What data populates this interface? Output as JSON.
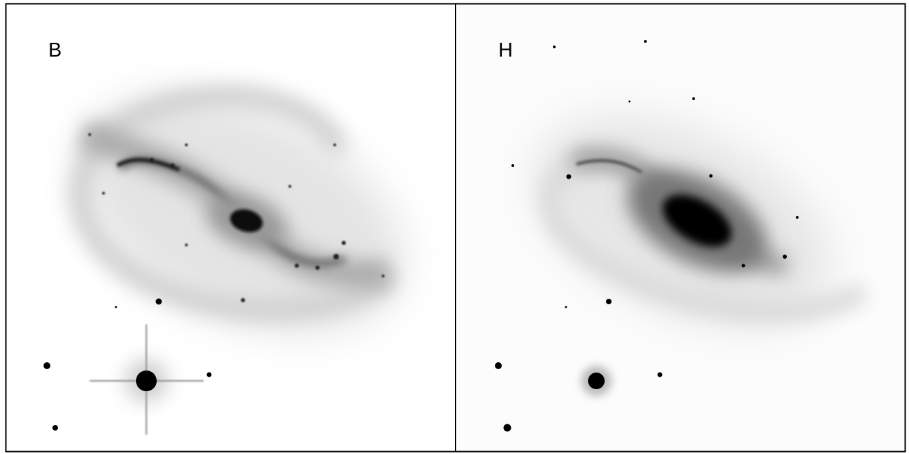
{
  "panels": [
    {
      "label": "B"
    },
    {
      "label": "H"
    }
  ]
}
